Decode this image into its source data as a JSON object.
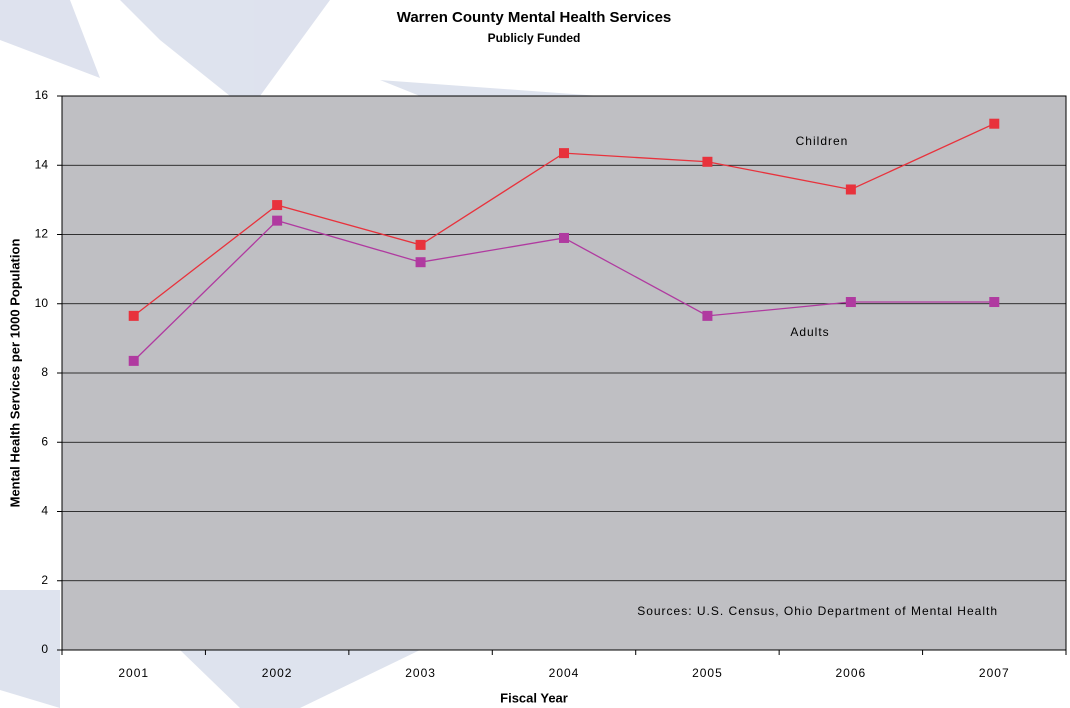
{
  "chart_data": {
    "type": "line",
    "title": "Warren County Mental Health Services",
    "subtitle": "Publicly Funded",
    "x_label": "Fiscal Year",
    "y_label": "Mental Health Services per 1000 Population",
    "annotation": "Sources: U.S. Census, Ohio Department of Mental Health",
    "categories": [
      "2001",
      "2002",
      "2003",
      "2004",
      "2005",
      "2006",
      "2007"
    ],
    "series": [
      {
        "name": "Children",
        "color": "#e8323c",
        "values": [
          9.65,
          12.85,
          11.7,
          14.35,
          14.1,
          13.3,
          15.2
        ]
      },
      {
        "name": "Adults",
        "color": "#b03aa0",
        "values": [
          8.35,
          12.4,
          11.2,
          11.9,
          9.65,
          10.05,
          10.05
        ]
      }
    ],
    "ylim": [
      0,
      16
    ],
    "yticks": [
      0,
      2,
      4,
      6,
      8,
      10,
      12,
      14,
      16
    ],
    "grid": true
  }
}
